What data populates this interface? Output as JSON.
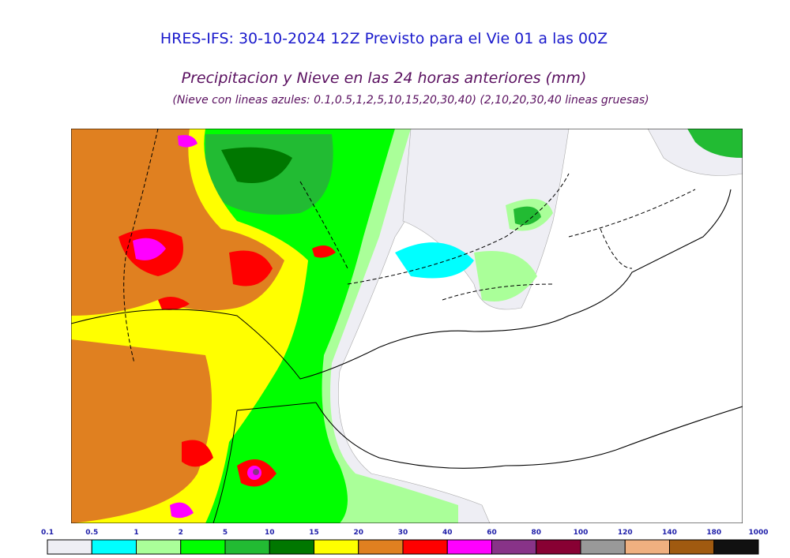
{
  "header": {
    "title": "HRES-IFS: 30-10-2024 12Z Previsto para el Vie 01 a las 00Z",
    "subtitle": "Precipitacion y Nieve en las 24 horas anteriores (mm)",
    "note": "(Nieve con lineas azules: 0.1,0.5,1,2,5,10,15,20,30,40)  (2,10,20,30,40 lineas gruesas)"
  },
  "colorbar": {
    "ticks": [
      0.1,
      0.5,
      1,
      2,
      5,
      10,
      15,
      20,
      30,
      40,
      60,
      80,
      100,
      120,
      140,
      180,
      1000
    ],
    "colors": [
      "#eeeef4",
      "#00ffff",
      "#aaff99",
      "#00ff00",
      "#22bb33",
      "#007700",
      "#ffff00",
      "#e08020",
      "#ff0000",
      "#ff00ff",
      "#883388",
      "#880033",
      "#999999",
      "#f0b080",
      "#a05a10",
      "#111111"
    ]
  }
}
